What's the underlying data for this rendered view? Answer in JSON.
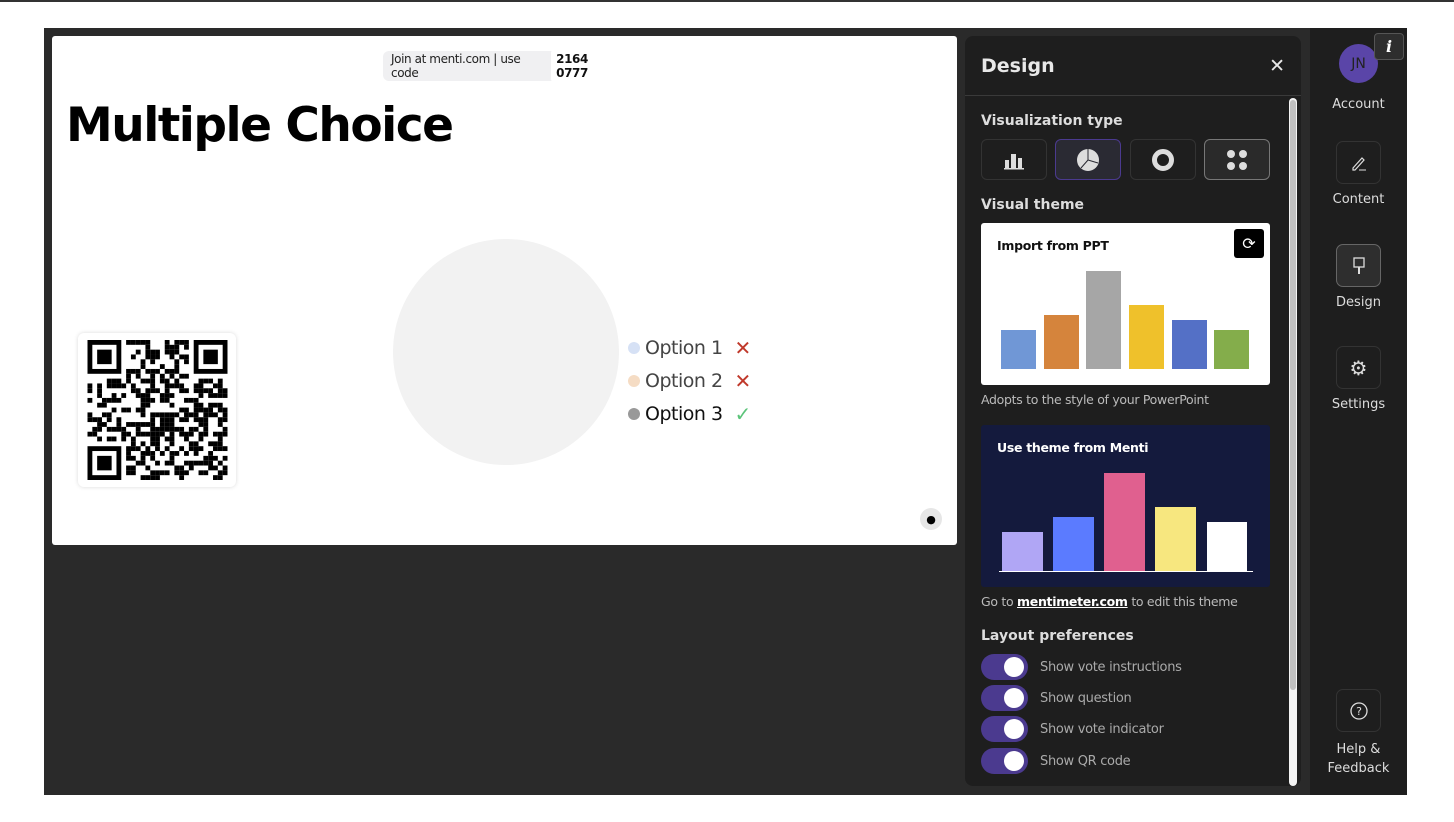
{
  "slide": {
    "join_text": "Join at menti.com | use code",
    "join_code": "2164 0777",
    "title": "Multiple Choice",
    "options": [
      {
        "label": "Option 1",
        "color": "#d6e1f5",
        "correct": false
      },
      {
        "label": "Option 2",
        "color": "#f5dcc4",
        "correct": false
      },
      {
        "label": "Option 3",
        "color": "#999999",
        "correct": true
      }
    ]
  },
  "design_panel": {
    "title": "Design",
    "visualization_label": "Visualization type",
    "visualization_types": [
      "bar-chart-icon",
      "pie-chart-icon",
      "donut-chart-icon",
      "dots-icon"
    ],
    "selected_visualization": "pie-chart-icon",
    "visual_theme_label": "Visual theme",
    "ppt_card": {
      "label": "Import from PPT",
      "colors": [
        "#7097d6",
        "#d5843c",
        "#a6a6a6",
        "#efc12b",
        "#5470c6",
        "#84ad4b"
      ]
    },
    "ppt_note": "Adopts to the style of your PowerPoint",
    "menti_card": {
      "label": "Use theme from Menti",
      "colors": [
        "#b0a6f5",
        "#5b7bff",
        "#e0608f",
        "#f7e77f",
        "#ffffff"
      ]
    },
    "menti_note_pre": "Go to",
    "menti_note_link": "mentimeter.com",
    "menti_note_post": "to edit this theme",
    "layout_label": "Layout preferences",
    "toggles": [
      {
        "label": "Show vote instructions",
        "on": true
      },
      {
        "label": "Show question",
        "on": true
      },
      {
        "label": "Show vote indicator",
        "on": true
      },
      {
        "label": "Show QR code",
        "on": true
      }
    ]
  },
  "sidebar": {
    "avatar_initials": "JN",
    "items": [
      {
        "label": "Account"
      },
      {
        "label": "Content"
      },
      {
        "label": "Design"
      },
      {
        "label": "Settings"
      },
      {
        "label": "Help &\nFeedback"
      }
    ]
  },
  "accent": "#4b3a8f"
}
